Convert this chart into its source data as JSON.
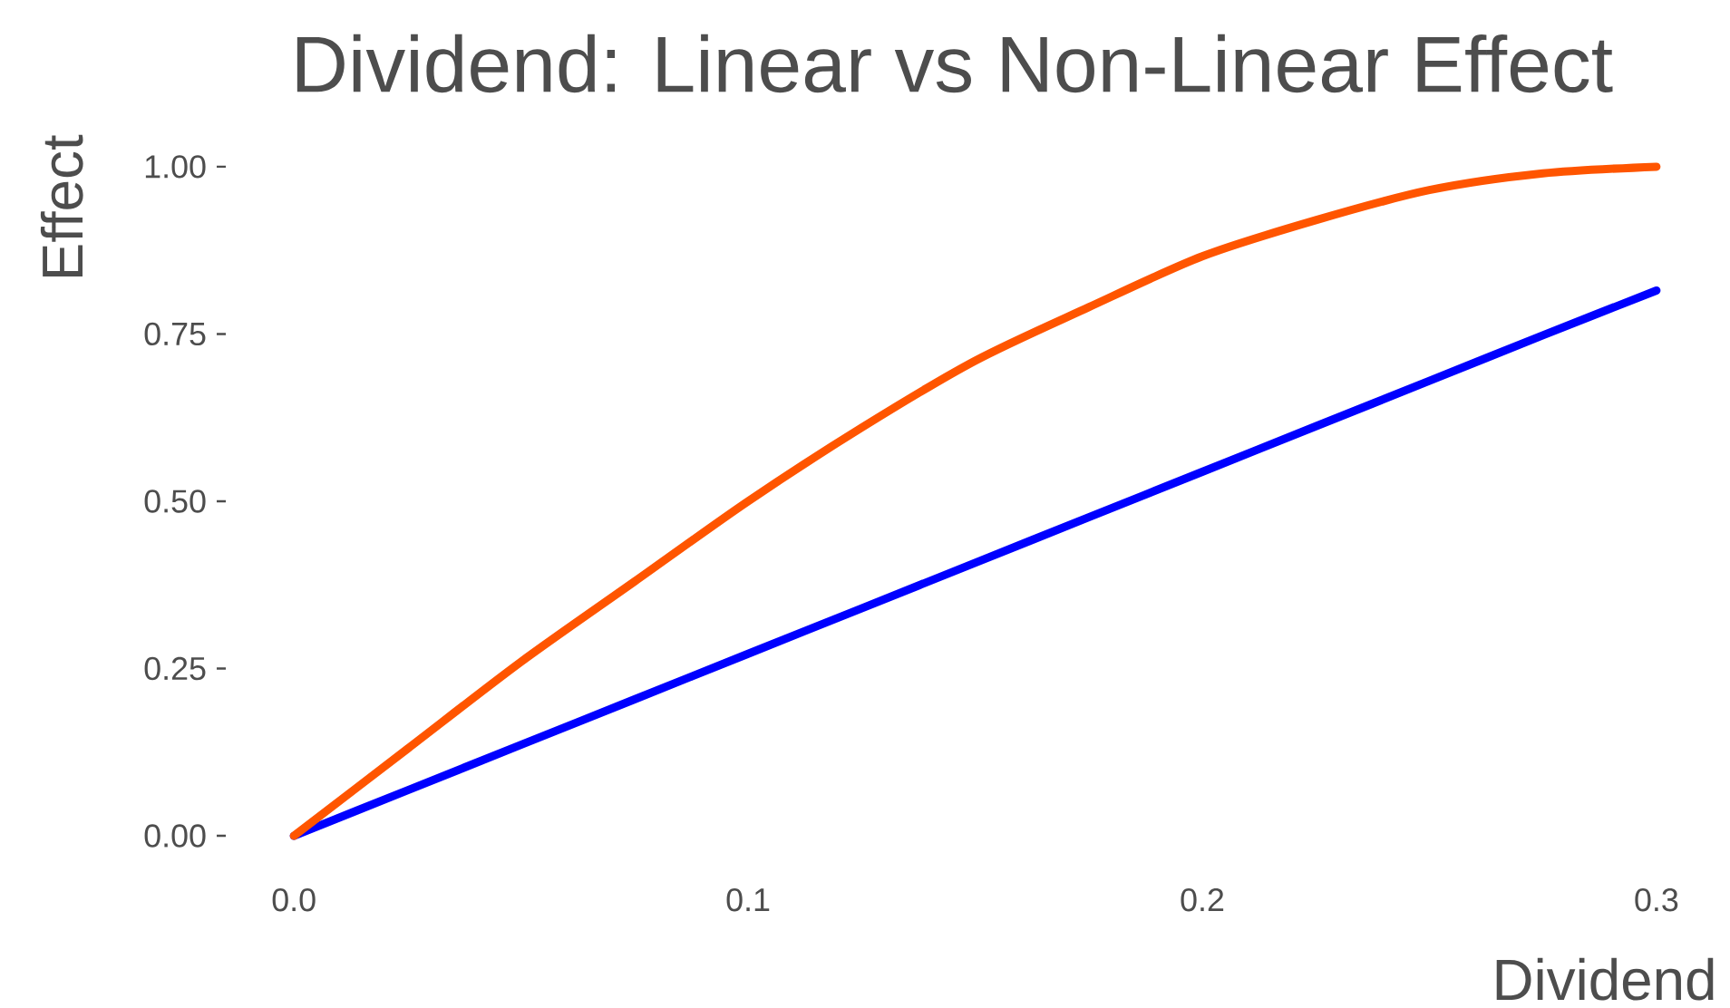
{
  "chart_data": {
    "type": "line",
    "title": "Dividend: Linear vs Non-Linear Effect",
    "xlabel": "Dividend",
    "ylabel": "Effect",
    "x": [
      0,
      0.025,
      0.05,
      0.075,
      0.1,
      0.125,
      0.15,
      0.175,
      0.2,
      0.225,
      0.25,
      0.275,
      0.3
    ],
    "series": [
      {
        "color": "#0000ff",
        "values": [
          0,
          0.068,
          0.136,
          0.204,
          0.272,
          0.34,
          0.408,
          0.476,
          0.544,
          0.612,
          0.68,
          0.748,
          0.815
        ]
      },
      {
        "color": "#ff5500",
        "values": [
          0,
          0.13,
          0.26,
          0.38,
          0.5,
          0.61,
          0.71,
          0.79,
          0.866,
          0.92,
          0.965,
          0.99,
          1.0
        ]
      }
    ],
    "xticks": [
      {
        "value": 0,
        "label": "0.0"
      },
      {
        "value": 0.1,
        "label": "0.1"
      },
      {
        "value": 0.2,
        "label": "0.2"
      },
      {
        "value": 0.3,
        "label": "0.3"
      }
    ],
    "yticks": [
      {
        "value": 0,
        "label": "0.00"
      },
      {
        "value": 0.25,
        "label": "0.25"
      },
      {
        "value": 0.5,
        "label": "0.50"
      },
      {
        "value": 0.75,
        "label": "0.75"
      },
      {
        "value": 1,
        "label": "1.00"
      }
    ],
    "xlim": [
      0,
      0.3
    ],
    "ylim": [
      0,
      1
    ],
    "grid": false,
    "line_style": "solid",
    "marker": "none"
  }
}
